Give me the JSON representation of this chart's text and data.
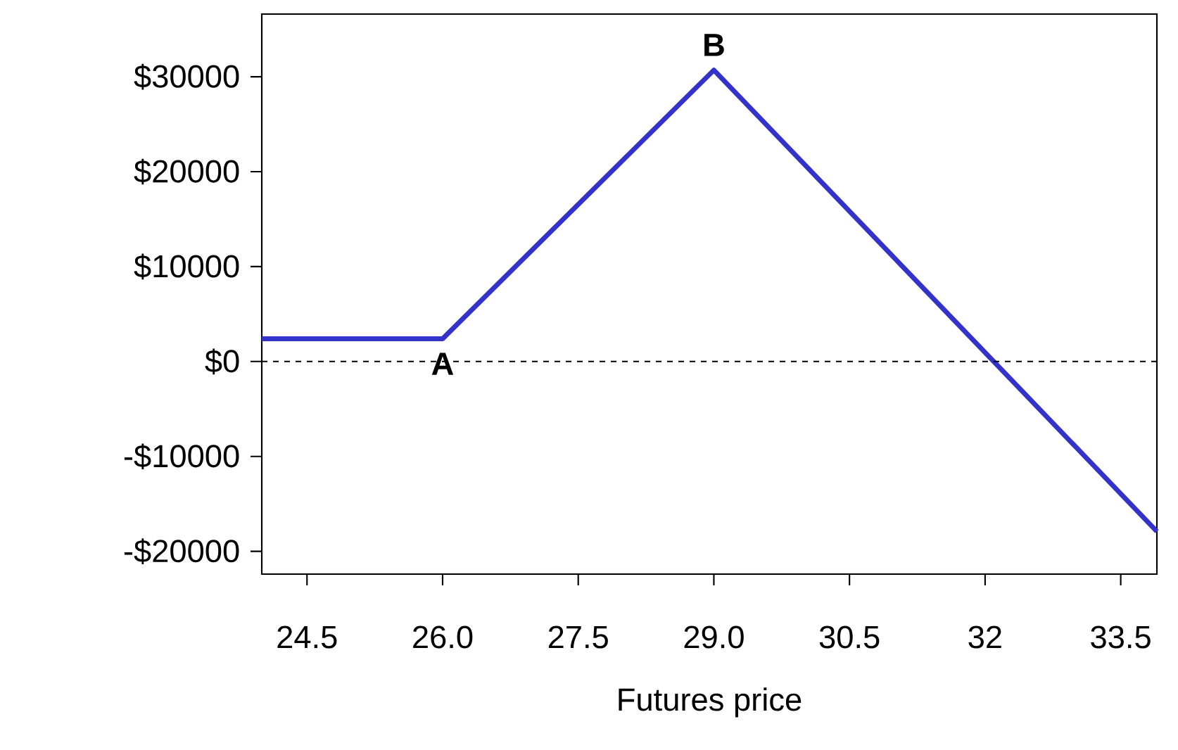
{
  "chart_data": {
    "type": "line",
    "xlabel": "Futures price",
    "x": [
      24.0,
      26.0,
      29.0,
      33.9
    ],
    "series": [
      {
        "color": "#3333cc",
        "values": [
          2400,
          2400,
          30700,
          -17900
        ]
      }
    ],
    "xlim": [
      24.0,
      33.9
    ],
    "ylim": [
      -22400,
      36600
    ],
    "xticks": [
      24.5,
      {
        "value": 26.0,
        "label": "26.0"
      },
      27.5,
      {
        "value": 29.0,
        "label": "29.0"
      },
      30.5,
      32,
      33.5
    ],
    "yticks": [
      {
        "value": -20000,
        "label": "-$20000"
      },
      {
        "value": -10000,
        "label": "-$10000"
      },
      {
        "value": 0,
        "label": "$0"
      },
      {
        "value": 10000,
        "label": "$10000"
      },
      {
        "value": 20000,
        "label": "$20000"
      },
      {
        "value": 30000,
        "label": "$30000"
      }
    ],
    "ref_lines": [
      {
        "axis": "y",
        "value": 0,
        "line_style": "dashed",
        "color": "#000000"
      }
    ],
    "annotations": [
      {
        "text": "A",
        "x": 26.0,
        "y": 2400
      },
      {
        "text": "B",
        "x": 29.0,
        "y": 30700
      }
    ],
    "grid": false,
    "marker": "none",
    "line_style": "solid"
  }
}
